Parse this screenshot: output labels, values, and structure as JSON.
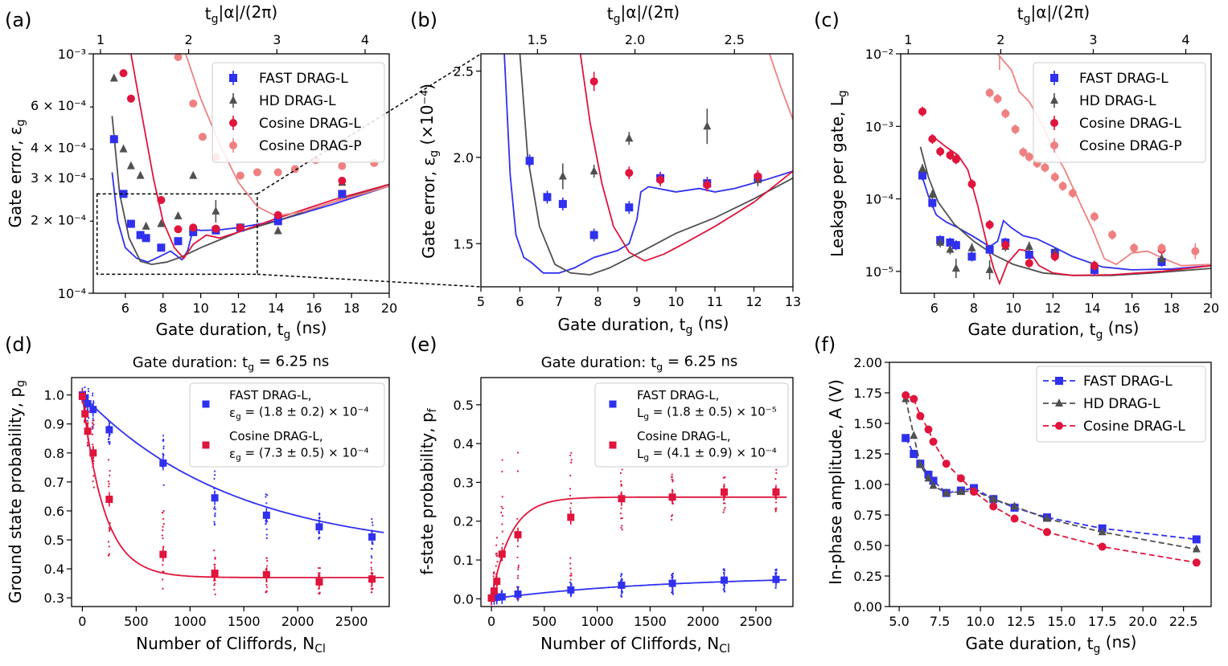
{
  "colors": {
    "fast": "#3030f0",
    "hd": "#505050",
    "cos": "#e0143c",
    "cosp": "#f08080"
  },
  "labels": {
    "a": "(a)",
    "b": "(b)",
    "c": "(c)",
    "d": "(d)",
    "e": "(e)",
    "f": "(f)",
    "top_axis": "t_g|α|/(2π)",
    "x_gate": "Gate duration, t_g (ns)",
    "x_cliff": "Number of Cliffords,  N_Cl",
    "y_err": "Gate error, ε_g",
    "y_err_b": "Gate error, ε_g (×10⁻⁴)",
    "y_leak": "Leakage per gate, L_g",
    "y_ground": "Ground state probability, p_g",
    "y_fstate": "f-state probability, p_f",
    "y_amp": "In-phase amplitude, A (V)",
    "title_de": "Gate duration: t_g = 6.25 ns"
  },
  "legend": {
    "fast": "FAST DRAG-L",
    "hd": "HD DRAG-L",
    "cos": "Cosine DRAG-L",
    "cosp": "Cosine DRAG-P",
    "d_fast_1": "FAST DRAG-L,",
    "d_fast_2": "ε_g = (1.8 ± 0.2) × 10⁻⁴",
    "d_cos_1": "Cosine DRAG-L,",
    "d_cos_2": "ε_g = (7.3 ± 0.5) × 10⁻⁴",
    "e_fast_1": "FAST DRAG-L,",
    "e_fast_2": "L_g = (1.8 ± 0.5) × 10⁻⁵",
    "e_cos_1": "Cosine DRAG-L,",
    "e_cos_2": "L_g = (4.1 ± 0.9) × 10⁻⁴"
  },
  "chart_data": [
    {
      "panel": "a",
      "type": "scatter",
      "xlabel": "Gate duration, t_g (ns)",
      "ylabel": "Gate error, ε_g",
      "yscale": "log",
      "xlim": [
        4.3,
        20
      ],
      "ylim": [
        0.0001,
        0.001
      ],
      "x_ticks": [
        6,
        8,
        10,
        12,
        14,
        16,
        18,
        20
      ],
      "y_ticks": [
        "10⁻⁴",
        "2 × 10⁻⁴",
        "3 × 10⁻⁴",
        "4 × 10⁻⁴",
        "6 × 10⁻⁴",
        "10⁻³"
      ],
      "top_ticks": [
        "1",
        "2",
        "3",
        "4"
      ],
      "series": [
        {
          "name": "FAST DRAG-L",
          "x": [
            5.4,
            5.9,
            6.3,
            6.8,
            7.1,
            7.9,
            8.8,
            9.6,
            10.8,
            12.1,
            14.1,
            17.5
          ],
          "y": [
            0.00044,
            0.00026,
            0.000195,
            0.000175,
            0.00017,
            0.000155,
            0.000165,
            0.00018,
            0.000183,
            0.000188,
            0.0002,
            0.00026
          ]
        },
        {
          "name": "HD DRAG-L",
          "x": [
            5.4,
            5.9,
            6.3,
            6.8,
            7.1,
            7.9,
            8.8,
            9.6,
            10.8,
            12.1,
            14.1,
            17.5
          ],
          "y": [
            0.00079,
            0.0004,
            0.00034,
            0.00031,
            0.00019,
            0.000195,
            0.00021,
            0.00031,
            0.00022,
            0.000188,
            0.000182,
            0.00029
          ]
        },
        {
          "name": "Cosine DRAG-L",
          "x": [
            5.9,
            6.3,
            7.9,
            8.8,
            9.6,
            10.8,
            12.1,
            14.1,
            17.5
          ],
          "y": [
            0.00083,
            0.00065,
            0.000245,
            0.000185,
            0.000188,
            0.000186,
            0.000188,
            0.000212,
            0.000295
          ]
        },
        {
          "name": "Cosine DRAG-P",
          "x": [
            8.8,
            9.6,
            10.1,
            10.8,
            12.1,
            13.0,
            14.1,
            15.0,
            16.1,
            17.5,
            19.2
          ],
          "y": [
            0.00097,
            0.00062,
            0.00045,
            0.00037,
            0.00031,
            0.00032,
            0.00032,
            0.00033,
            0.00036,
            0.00034,
            0.00035
          ]
        }
      ],
      "inset_box": {
        "x": [
          4.5,
          13.0
        ],
        "y": [
          0.00012,
          0.00026
        ]
      }
    },
    {
      "panel": "b",
      "type": "scatter",
      "xlabel": "Gate duration, t_g (ns)",
      "ylabel": "Gate error, ε_g (×10⁻⁴)",
      "xlim": [
        5,
        13
      ],
      "ylim": [
        1.25,
        2.6
      ],
      "x_ticks": [
        5,
        6,
        7,
        8,
        9,
        10,
        11,
        12,
        13
      ],
      "y_ticks": [
        1.5,
        2.0,
        2.5
      ],
      "top_ticks": [
        "1.5",
        "2.0",
        "2.5"
      ],
      "series": [
        {
          "name": "FAST DRAG-L",
          "x": [
            6.25,
            6.7,
            7.1,
            7.9,
            8.8,
            9.6,
            10.8,
            12.1
          ],
          "y": [
            1.98,
            1.77,
            1.73,
            1.55,
            1.71,
            1.88,
            1.85,
            1.88
          ]
        },
        {
          "name": "HD DRAG-L",
          "x": [
            7.1,
            7.9,
            8.8,
            10.8,
            12.1
          ],
          "y": [
            1.89,
            1.92,
            2.11,
            2.18,
            1.87
          ]
        },
        {
          "name": "Cosine DRAG-L",
          "x": [
            7.9,
            8.8,
            9.6,
            10.8,
            12.1
          ],
          "y": [
            2.44,
            1.91,
            1.87,
            1.84,
            1.89
          ]
        }
      ]
    },
    {
      "panel": "c",
      "type": "scatter",
      "xlabel": "Gate duration, t_g (ns)",
      "ylabel": "Leakage per gate, L_g",
      "yscale": "log",
      "xlim": [
        4.3,
        20
      ],
      "ylim": [
        5e-06,
        0.01
      ],
      "x_ticks": [
        6,
        8,
        10,
        12,
        14,
        16,
        18,
        20
      ],
      "y_ticks": [
        "10⁻⁵",
        "10⁻⁴",
        "10⁻³",
        "10⁻²"
      ],
      "top_ticks": [
        "1",
        "2",
        "3",
        "4"
      ],
      "series": [
        {
          "name": "FAST DRAG-L",
          "x": [
            5.4,
            5.9,
            6.3,
            6.8,
            7.1,
            7.9,
            8.8,
            9.6,
            10.8,
            12.1,
            14.1,
            17.5
          ],
          "y": [
            0.00021,
            8.8e-05,
            2.7e-05,
            2.5e-05,
            2.3e-05,
            1.6e-05,
            2e-05,
            2.5e-05,
            1.7e-05,
            1.8e-05,
            1.05e-05,
            1.35e-05
          ]
        },
        {
          "name": "HD DRAG-L",
          "x": [
            5.4,
            5.9,
            6.3,
            6.8,
            7.1,
            7.9,
            8.8,
            9.6,
            10.8,
            12.1,
            14.1,
            17.5
          ],
          "y": [
            0.00026,
            0.000115,
            2.5e-05,
            2e-05,
            1.1e-05,
            2.1e-05,
            1.05e-05,
            2.2e-05,
            2.2e-05,
            1.8e-05,
            1.2e-05,
            1.5e-05
          ]
        },
        {
          "name": "Cosine DRAG-L",
          "x": [
            5.4,
            5.9,
            6.3,
            6.8,
            7.1,
            7.9,
            8.8,
            9.6,
            10.8,
            12.1,
            14.1,
            17.5
          ],
          "y": [
            0.0016,
            0.00067,
            0.00045,
            0.0004,
            0.00035,
            0.00016,
            4.4e-05,
            2.3e-05,
            1.3e-05,
            1.6e-05,
            1.2e-05,
            2e-05
          ]
        },
        {
          "name": "Cosine DRAG-P",
          "x": [
            8.8,
            9.2,
            9.6,
            10.1,
            10.5,
            10.8,
            11.2,
            11.6,
            12.1,
            12.5,
            13.0,
            14.1,
            15.0,
            16.1,
            17.5,
            19.2
          ],
          "y": [
            0.0029,
            0.0024,
            0.0015,
            0.00091,
            0.00044,
            0.00038,
            0.00031,
            0.00027,
            0.0002,
            0.00015,
            0.00012,
            5.7e-05,
            3.2e-05,
            2.1e-05,
            2.1e-05,
            1.9e-05
          ]
        }
      ]
    },
    {
      "panel": "d",
      "type": "scatter",
      "title": "Gate duration: t_g = 6.25 ns",
      "xlabel": "Number of Cliffords,  N_Cl",
      "ylabel": "Ground state probability, p_g",
      "xlim": [
        -100,
        2850
      ],
      "ylim": [
        0.27,
        1.06
      ],
      "x_ticks": [
        0,
        500,
        1000,
        1500,
        2000,
        2500
      ],
      "y_ticks": [
        0.3,
        0.4,
        0.5,
        0.6,
        0.7,
        0.8,
        0.9,
        1.0
      ],
      "series": [
        {
          "name": "FAST DRAG-L",
          "x": [
            0,
            25,
            50,
            100,
            250,
            750,
            1230,
            1710,
            2200,
            2690
          ],
          "y": [
            1.0,
            0.99,
            0.97,
            0.95,
            0.88,
            0.765,
            0.645,
            0.585,
            0.545,
            0.51
          ]
        },
        {
          "name": "Cosine DRAG-L",
          "x": [
            0,
            25,
            50,
            100,
            250,
            750,
            1230,
            1710,
            2200,
            2690
          ],
          "y": [
            0.995,
            0.935,
            0.875,
            0.8,
            0.64,
            0.45,
            0.385,
            0.38,
            0.355,
            0.365
          ]
        }
      ],
      "fits": [
        {
          "name": "FAST DRAG-L",
          "A": 0.55,
          "B": 0.45,
          "p": 0.99929
        },
        {
          "name": "Cosine DRAG-L",
          "A": 0.63,
          "B": 0.37,
          "p": 0.99509
        }
      ]
    },
    {
      "panel": "e",
      "type": "scatter",
      "title": "Gate duration: t_g = 6.25 ns",
      "xlabel": "Number of Cliffords, N_Cl",
      "ylabel": "f-state probability, p_f",
      "xlim": [
        -100,
        2850
      ],
      "ylim": [
        -0.02,
        0.57
      ],
      "x_ticks": [
        0,
        500,
        1000,
        1500,
        2000,
        2500
      ],
      "y_ticks": [
        0.0,
        0.1,
        0.2,
        0.3,
        0.4,
        0.5
      ],
      "series": [
        {
          "name": "FAST DRAG-L",
          "x": [
            0,
            25,
            50,
            100,
            250,
            750,
            1230,
            1710,
            2200,
            2690
          ],
          "y": [
            0.002,
            0.003,
            0.004,
            0.005,
            0.012,
            0.023,
            0.035,
            0.04,
            0.048,
            0.05
          ]
        },
        {
          "name": "Cosine DRAG-L",
          "x": [
            0,
            25,
            50,
            100,
            250,
            750,
            1230,
            1710,
            2200,
            2690
          ],
          "y": [
            0.002,
            0.02,
            0.045,
            0.115,
            0.165,
            0.21,
            0.258,
            0.262,
            0.275,
            0.275
          ]
        }
      ],
      "fits": [
        {
          "name": "FAST DRAG-L",
          "Ainf": 0.06,
          "rate": 0.0006
        },
        {
          "name": "Cosine DRAG-L",
          "Ainf": 0.262,
          "rate": 0.0055
        }
      ]
    },
    {
      "panel": "f",
      "type": "line",
      "xlabel": "Gate duration, t_g (ns)",
      "ylabel": "In-phase amplitude, A (V)",
      "xlim": [
        4.4,
        24.2
      ],
      "ylim": [
        0.0,
        2.0
      ],
      "x_ticks": [
        5.0,
        7.5,
        10.0,
        12.5,
        15.0,
        17.5,
        20.0,
        22.5
      ],
      "y_ticks": [
        0.0,
        0.25,
        0.5,
        0.75,
        1.0,
        1.25,
        1.5,
        1.75,
        2.0
      ],
      "series": [
        {
          "name": "FAST DRAG-L",
          "x": [
            5.4,
            5.9,
            6.3,
            6.8,
            7.1,
            7.9,
            8.8,
            9.6,
            10.8,
            12.1,
            14.1,
            17.5,
            23.3
          ],
          "y": [
            1.38,
            1.25,
            1.17,
            1.08,
            1.03,
            0.93,
            0.95,
            0.97,
            0.88,
            0.81,
            0.73,
            0.64,
            0.55
          ]
        },
        {
          "name": "HD DRAG-L",
          "x": [
            5.4,
            5.9,
            6.3,
            6.8,
            7.1,
            7.9,
            8.8,
            9.6,
            10.8,
            12.1,
            14.1,
            17.5,
            23.3
          ],
          "y": [
            1.7,
            1.4,
            1.16,
            1.05,
            0.99,
            0.93,
            0.94,
            0.95,
            0.88,
            0.82,
            0.72,
            0.61,
            0.47
          ]
        },
        {
          "name": "Cosine DRAG-L",
          "x": [
            5.4,
            5.9,
            6.3,
            6.8,
            7.1,
            7.9,
            8.8,
            9.6,
            10.8,
            12.1,
            14.1,
            17.5,
            23.3
          ],
          "y": [
            1.73,
            1.7,
            1.56,
            1.45,
            1.35,
            1.17,
            1.05,
            0.94,
            0.82,
            0.72,
            0.61,
            0.49,
            0.36
          ]
        }
      ]
    }
  ]
}
